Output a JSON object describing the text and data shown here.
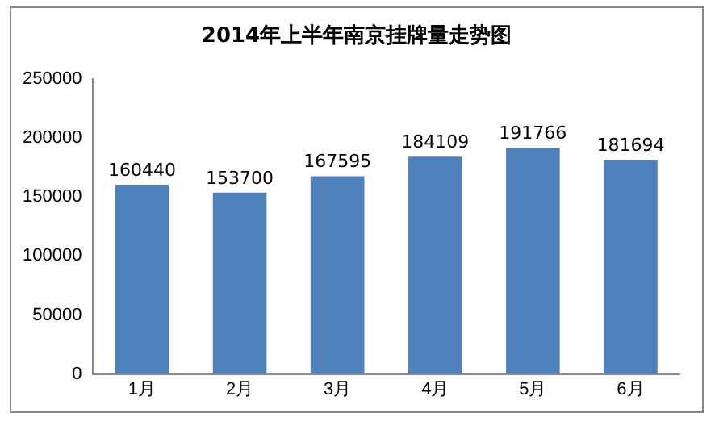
{
  "chart_data": {
    "type": "bar",
    "title": "2014年上半年南京挂牌量走势图",
    "categories": [
      "1月",
      "2月",
      "3月",
      "4月",
      "5月",
      "6月"
    ],
    "values": [
      160440,
      153700,
      167595,
      184109,
      191766,
      181694
    ],
    "color": "#4f81bd",
    "ylim": [
      0,
      250000
    ],
    "yticks": [
      0,
      50000,
      100000,
      150000,
      200000,
      250000
    ],
    "grid": false,
    "legend": false,
    "data_labels": true
  }
}
